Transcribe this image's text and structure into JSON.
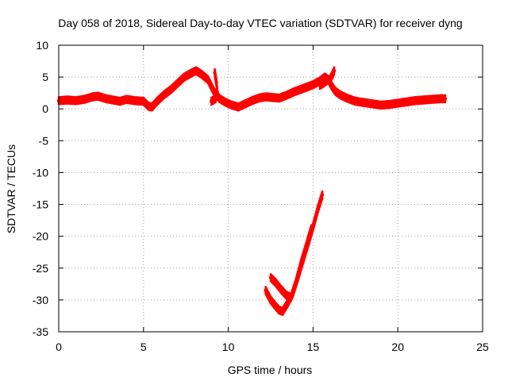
{
  "chart_data": {
    "type": "line",
    "title": "Day 058 of 2018, Sidereal Day-to-day VTEC variation (SDTVAR) for receiver dyng",
    "xlabel": "GPS time / hours",
    "ylabel": "SDTVAR / TECUs",
    "xlim": [
      0,
      25
    ],
    "ylim": [
      -35,
      10
    ],
    "xticks": [
      0,
      5,
      10,
      15,
      20,
      25
    ],
    "yticks": [
      10,
      5,
      0,
      -5,
      -10,
      -15,
      -20,
      -25,
      -30,
      -35
    ],
    "grid": true,
    "legend": "none",
    "series_color": "#ff0000",
    "band_spread": 1.1,
    "series": [
      {
        "name": "main",
        "x": [
          0,
          0.5,
          1,
          1.5,
          2,
          2.3,
          2.8,
          3.2,
          3.6,
          4,
          4.5,
          5,
          5.3,
          5.5,
          5.8,
          6.2,
          6.6,
          7,
          7.4,
          7.8,
          8.1,
          8.4,
          8.8,
          9.2,
          9.5,
          9.8,
          10.2,
          10.6,
          11,
          11.4,
          11.8,
          12.2,
          12.6,
          13,
          13.4,
          13.8,
          14.2,
          14.6,
          15,
          15.4,
          15.7,
          15.9,
          16.1,
          16.3,
          16.6,
          17,
          17.5,
          18,
          18.5,
          19,
          19.5,
          20,
          20.5,
          21,
          21.5,
          22,
          22.5,
          22.8
        ],
        "y": [
          1.3,
          1.4,
          1.3,
          1.5,
          1.9,
          2.0,
          1.6,
          1.4,
          1.2,
          1.5,
          1.3,
          1.2,
          0.4,
          0.3,
          1.2,
          2.2,
          3.0,
          4.0,
          5.0,
          5.6,
          6.0,
          5.5,
          4.6,
          2.5,
          1.6,
          1.1,
          0.6,
          0.3,
          0.8,
          1.3,
          1.7,
          1.9,
          1.8,
          1.7,
          2.1,
          2.6,
          3.0,
          3.4,
          3.8,
          4.4,
          5.0,
          4.6,
          3.6,
          2.8,
          2.2,
          1.7,
          1.2,
          1.0,
          0.8,
          0.6,
          0.7,
          0.9,
          1.1,
          1.3,
          1.4,
          1.5,
          1.6,
          1.6
        ]
      },
      {
        "name": "spike-a",
        "x": [
          9.2,
          9.3,
          9.35,
          9.25,
          9.0
        ],
        "y": [
          5.7,
          4.2,
          2.7,
          1.6,
          1.2
        ]
      },
      {
        "name": "spike-b",
        "x": [
          16.25,
          16.15,
          16.0,
          15.8,
          15.6,
          15.4
        ],
        "y": [
          6.0,
          5.4,
          4.7,
          4.4,
          4.0,
          3.7
        ]
      },
      {
        "name": "dip-left",
        "x": [
          12.2,
          12.5,
          12.8,
          13.0,
          13.2
        ],
        "y": [
          -28.5,
          -30.0,
          -31.0,
          -31.6,
          -31.8
        ]
      },
      {
        "name": "dip-main",
        "x": [
          13.2,
          13.5,
          13.8,
          14.1,
          14.4,
          14.7,
          15.0,
          15.3,
          15.55
        ],
        "y": [
          -31.8,
          -30.5,
          -29.0,
          -26.5,
          -23.8,
          -21.2,
          -18.5,
          -15.6,
          -13.5
        ]
      },
      {
        "name": "dip-inner",
        "x": [
          12.5,
          12.8,
          13.1,
          13.4,
          13.7,
          14.0,
          14.3,
          14.6,
          14.9
        ],
        "y": [
          -26.5,
          -27.3,
          -28.3,
          -29.2,
          -29.6,
          -27.2,
          -24.2,
          -21.5,
          -18.8
        ]
      }
    ]
  }
}
